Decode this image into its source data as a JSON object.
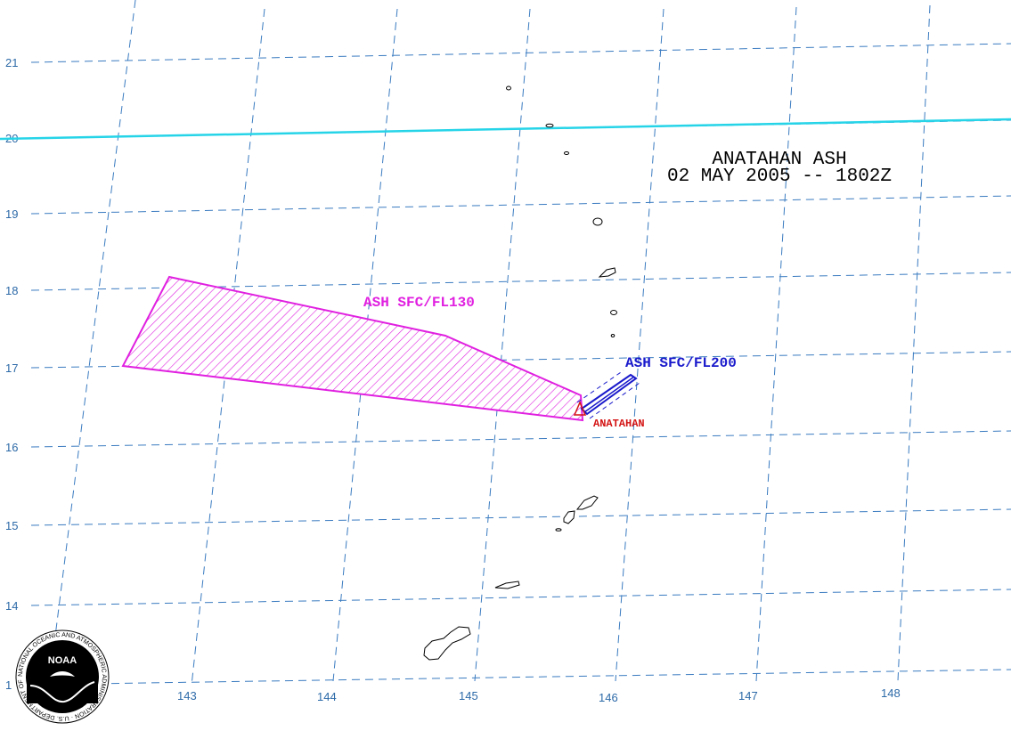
{
  "title": {
    "line1": "ANATAHAN ASH",
    "line2": "02 MAY 2005 -- 1802Z"
  },
  "longitude_labels": [
    "143",
    "144",
    "145",
    "146",
    "147",
    "148"
  ],
  "latitude_labels": [
    "21",
    "20",
    "19",
    "18",
    "17",
    "16",
    "15",
    "14",
    "1"
  ],
  "ash_areas": [
    {
      "label": "ASH SFC/FL130",
      "color": "#e020e0"
    },
    {
      "label": "ASH SFC/FL200",
      "color": "#1a1acc"
    }
  ],
  "volcano": {
    "name": "ANATAHAN",
    "color": "#d41414"
  },
  "boundary_color": "#26d4e8",
  "grid_color": "#3a7bc0",
  "logo": {
    "text": "NOAA",
    "ring_text": "NATIONAL OCEANIC AND ATMOSPHERIC ADMINISTRATION · U.S. DEPARTMENT OF COMMERCE"
  }
}
